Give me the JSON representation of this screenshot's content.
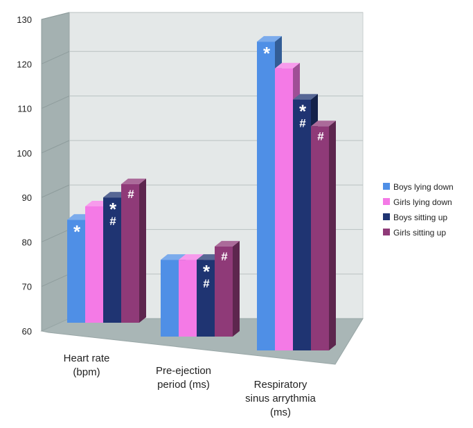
{
  "chart_data": {
    "type": "bar",
    "title": "",
    "xlabel": "",
    "ylabel": "",
    "ylim": [
      60,
      130
    ],
    "yticks": [
      60,
      70,
      80,
      90,
      100,
      110,
      120,
      130
    ],
    "grid": true,
    "legend_position": "right",
    "categories": [
      [
        "Heart rate",
        "(bpm)"
      ],
      [
        "Pre-ejection",
        "period (ms)"
      ],
      [
        "Respiratory",
        "sinus arrythmia",
        "(ms)"
      ]
    ],
    "series": [
      {
        "name": "Boys lying down",
        "color": "#4f8fe6",
        "values": [
          85,
          76,
          125
        ],
        "marks": [
          [
            "*"
          ],
          [],
          [
            "*"
          ]
        ]
      },
      {
        "name": "Girls lying down",
        "color": "#f47ae6",
        "values": [
          88,
          76,
          119
        ],
        "marks": [
          [],
          [],
          []
        ]
      },
      {
        "name": "Boys sitting up",
        "color": "#1f3472",
        "values": [
          90,
          76,
          112
        ],
        "marks": [
          [
            "*",
            "#"
          ],
          [
            "*",
            "#"
          ],
          [
            "*",
            "#"
          ]
        ]
      },
      {
        "name": "Girls sitting up",
        "color": "#8f3a78",
        "values": [
          93,
          79,
          106
        ],
        "marks": [
          [
            "#"
          ],
          [
            "#"
          ],
          [
            "#"
          ]
        ]
      }
    ]
  }
}
